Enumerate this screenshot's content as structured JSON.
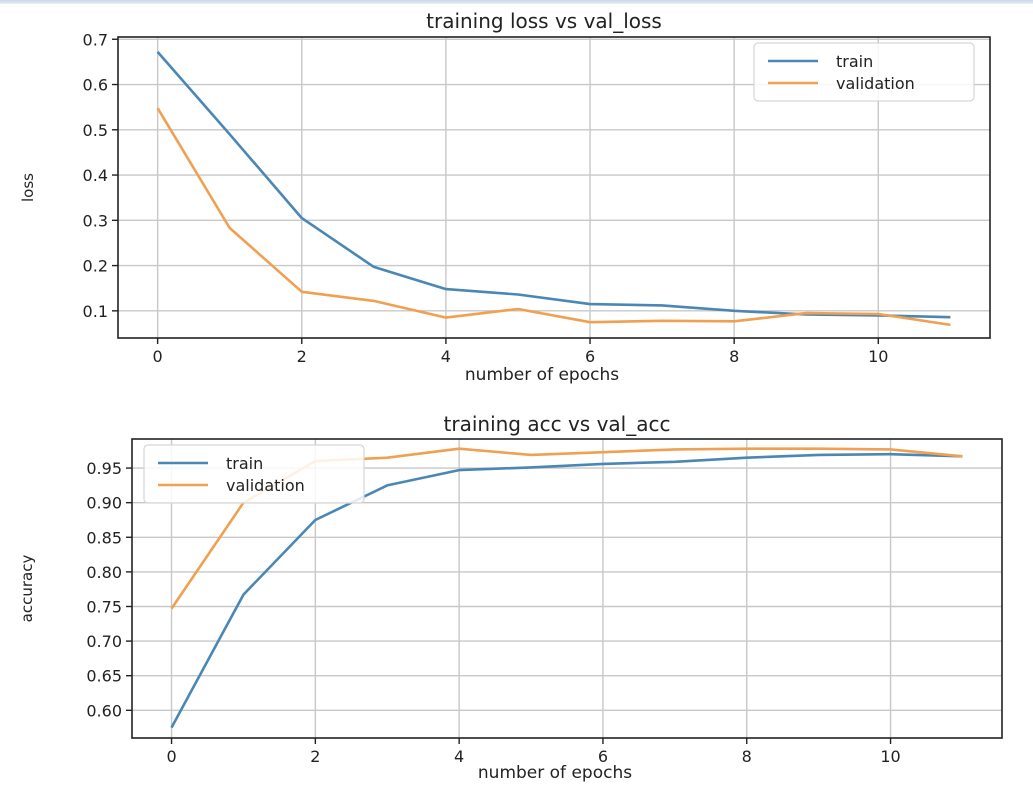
{
  "chart_data": [
    {
      "type": "line",
      "title": "training loss vs val_loss",
      "xlabel": "number of epochs",
      "ylabel": "loss",
      "xlim": [
        -0.55,
        11.55
      ],
      "ylim": [
        0.04,
        0.705
      ],
      "xticks": [
        0,
        2,
        4,
        6,
        8,
        10
      ],
      "yticks": [
        0.1,
        0.2,
        0.3,
        0.4,
        0.5,
        0.6,
        0.7
      ],
      "ytick_labels": [
        "0.1",
        "0.2",
        "0.3",
        "0.4",
        "0.5",
        "0.6",
        "0.7"
      ],
      "grid": true,
      "legend": "upper right",
      "x": [
        0,
        1,
        2,
        3,
        4,
        5,
        6,
        7,
        8,
        9,
        10,
        11
      ],
      "series": [
        {
          "name": "train",
          "color": "#4a87b4",
          "values": [
            0.672,
            0.49,
            0.305,
            0.197,
            0.148,
            0.136,
            0.115,
            0.112,
            0.1,
            0.092,
            0.09,
            0.086
          ]
        },
        {
          "name": "validation",
          "color": "#f0a050",
          "values": [
            0.548,
            0.283,
            0.142,
            0.122,
            0.085,
            0.104,
            0.075,
            0.078,
            0.077,
            0.095,
            0.093,
            0.069
          ]
        }
      ]
    },
    {
      "type": "line",
      "title": "training acc vs val_acc",
      "xlabel": "number of epochs",
      "ylabel": "accuracy",
      "xlim": [
        -0.55,
        11.55
      ],
      "ylim": [
        0.56,
        0.992
      ],
      "xticks": [
        0,
        2,
        4,
        6,
        8,
        10
      ],
      "yticks": [
        0.6,
        0.65,
        0.7,
        0.75,
        0.8,
        0.85,
        0.9,
        0.95
      ],
      "ytick_labels": [
        "0.60",
        "0.65",
        "0.70",
        "0.75",
        "0.80",
        "0.85",
        "0.90",
        "0.95"
      ],
      "grid": true,
      "legend": "upper left",
      "x": [
        0,
        1,
        2,
        3,
        4,
        5,
        6,
        7,
        8,
        9,
        10,
        11
      ],
      "series": [
        {
          "name": "train",
          "color": "#4a87b4",
          "values": [
            0.575,
            0.767,
            0.875,
            0.925,
            0.947,
            0.951,
            0.956,
            0.959,
            0.965,
            0.969,
            0.97,
            0.967
          ]
        },
        {
          "name": "validation",
          "color": "#f0a050",
          "values": [
            0.747,
            0.9,
            0.96,
            0.965,
            0.978,
            0.969,
            0.973,
            0.977,
            0.978,
            0.978,
            0.977,
            0.967
          ]
        }
      ]
    }
  ]
}
